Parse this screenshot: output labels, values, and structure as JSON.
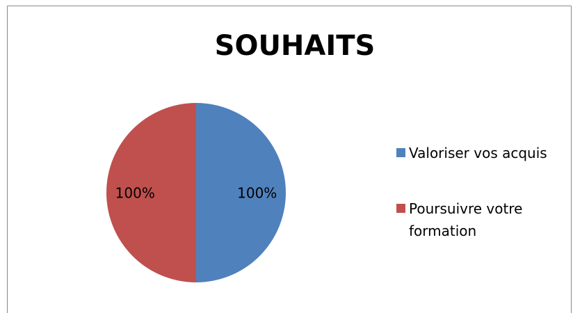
{
  "chart_data": {
    "type": "pie",
    "title": "SOUHAITS",
    "categories": [
      "Valoriser vos acquis",
      "Poursuivre votre formation"
    ],
    "values": [
      100,
      100
    ],
    "value_labels": [
      "100%",
      "100%"
    ],
    "colors": [
      "#4f81bd",
      "#c0504d"
    ],
    "legend": "right"
  }
}
